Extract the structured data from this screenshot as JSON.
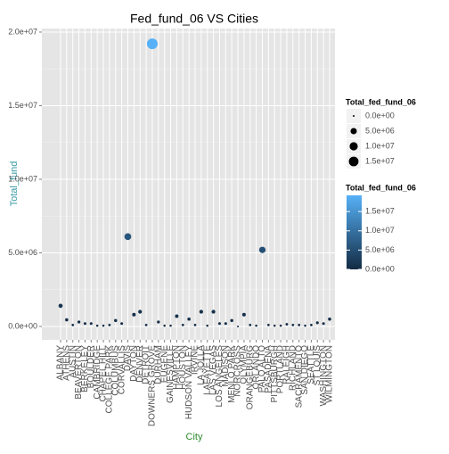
{
  "chart_data": {
    "type": "scatter",
    "title": "Fed_fund_06 VS Cities",
    "x_label": "City",
    "y_label": "Total_fund",
    "categories": [
      "ALBANY",
      "ATHENS",
      "AUSTIN",
      "BEAVERTON",
      "BERKELEY",
      "BOULDER",
      "CAMBRIDGE",
      "CHAPEL HILL",
      "COLLEGE PARK",
      "COLUMBUS",
      "CORVALLIS",
      "DAVIS",
      "DAYTON",
      "DENVER",
      "DETROIT",
      "DOWNERS GROVE",
      "DURHAM",
      "EUGENE",
      "GAINESVILLE",
      "HAMPTON",
      "HOUSTON",
      "HUDSON VALLEY",
      "IRVINE",
      "LA JOLLA",
      "LAFAYETTE",
      "LAS VEGAS",
      "LOS ANGELES",
      "MADISON",
      "MENLO PARK",
      "NORCROSS",
      "OLYMPIA",
      "ORANGEBURG",
      "ORLANDO",
      "PALO ALTO",
      "PASADENA",
      "PITTSBURGH",
      "PORTLAND",
      "RALEIGH",
      "RICHLAND",
      "SACRAMENTO",
      "SAN DIEGO",
      "SEATTLE",
      "ST LOUIS",
      "WASHINGTON",
      "WILMINGTON"
    ],
    "values": [
      1400000,
      450000,
      100000,
      300000,
      200000,
      200000,
      50000,
      50000,
      100000,
      400000,
      200000,
      6100000,
      800000,
      1000000,
      100000,
      19200000,
      300000,
      50000,
      50000,
      700000,
      100000,
      500000,
      100000,
      1000000,
      50000,
      1000000,
      200000,
      200000,
      400000,
      0,
      800000,
      100000,
      50000,
      5200000,
      100000,
      50000,
      50000,
      150000,
      100000,
      100000,
      50000,
      100000,
      250000,
      200000,
      500000
    ],
    "ylim": [
      -909000,
      20240000
    ],
    "yticks": [
      {
        "value": 0,
        "label": "0.0e+00"
      },
      {
        "value": 5000000,
        "label": "5.0e+06"
      },
      {
        "value": 10000000,
        "label": "1.0e+07"
      },
      {
        "value": 15000000,
        "label": "1.5e+07"
      },
      {
        "value": 20000000,
        "label": "2.0e+07"
      }
    ],
    "grid": true,
    "size_legend": {
      "title": "Total_fed_fund_06",
      "values": [
        {
          "value": 0,
          "label": "0.0e+00"
        },
        {
          "value": 5000000,
          "label": "5.0e+06"
        },
        {
          "value": 10000000,
          "label": "1.0e+07"
        },
        {
          "value": 15000000,
          "label": "1.5e+07"
        }
      ]
    },
    "color_legend": {
      "title": "Total_fed_fund_06",
      "colors": [
        "#132B43",
        "#56B1F7"
      ],
      "limits": [
        0,
        19200000
      ],
      "ticks": [
        {
          "value": 0,
          "label": "0.0e+00"
        },
        {
          "value": 5000000,
          "label": "5.0e+06"
        },
        {
          "value": 10000000,
          "label": "1.0e+07"
        },
        {
          "value": 15000000,
          "label": "1.5e+07"
        }
      ]
    }
  }
}
